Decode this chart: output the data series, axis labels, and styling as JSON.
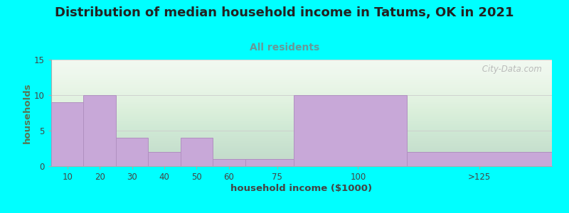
{
  "title": "Distribution of median household income in Tatums, OK in 2021",
  "subtitle": "All residents",
  "xlabel": "household income ($1000)",
  "ylabel": "households",
  "background_color": "#00FFFF",
  "bar_color": "#c8a8d8",
  "bar_edge_color": "#b090c0",
  "title_fontsize": 13,
  "subtitle_fontsize": 10,
  "axis_label_fontsize": 9.5,
  "tick_fontsize": 8.5,
  "values": [
    9,
    10,
    4,
    2,
    4,
    1,
    1,
    10,
    2
  ],
  "bar_lefts": [
    5,
    15,
    25,
    35,
    45,
    55,
    65,
    80,
    115
  ],
  "bar_rights": [
    15,
    25,
    35,
    45,
    55,
    65,
    80,
    115,
    160
  ],
  "xtick_positions": [
    10,
    20,
    30,
    40,
    50,
    60,
    75,
    100,
    137.5
  ],
  "xtick_labels": [
    "10",
    "20",
    "30",
    "40",
    "50",
    "60",
    "75",
    "100",
    ">125"
  ],
  "xlim": [
    5,
    160
  ],
  "ylim": [
    0,
    15
  ],
  "yticks": [
    0,
    5,
    10,
    15
  ],
  "watermark": " City-Data.com",
  "title_color": "#222222",
  "subtitle_color": "#669999",
  "ylabel_color": "#557755",
  "xlabel_color": "#444444",
  "grid_color": "#cccccc",
  "spine_color": "#aaaaaa"
}
